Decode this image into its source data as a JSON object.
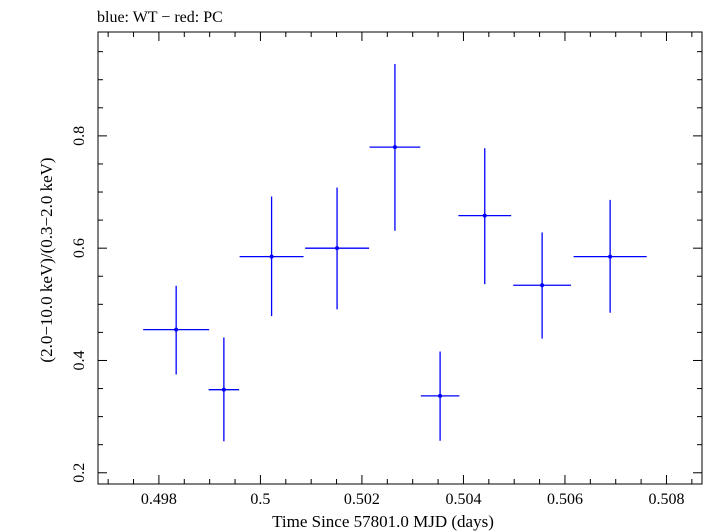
{
  "chart_data": {
    "type": "scatter",
    "title": "blue: WT − red: PC",
    "xlabel": "Time Since 57801.0 MJD (days)",
    "ylabel": "(2.0−10.0 keV)/(0.3−2.0 keV)",
    "xlim": [
      0.4968,
      0.5087
    ],
    "ylim": [
      0.18,
      0.985
    ],
    "x_ticks": [
      0.498,
      0.5,
      0.502,
      0.504,
      0.506,
      0.508
    ],
    "x_tick_labels": [
      "0.498",
      "0.5",
      "0.502",
      "0.504",
      "0.506",
      "0.508"
    ],
    "y_ticks": [
      0.2,
      0.4,
      0.6,
      0.8
    ],
    "y_tick_labels": [
      "0.2",
      "0.4",
      "0.6",
      "0.8"
    ],
    "x_minor_step": 0.0005,
    "y_minor_step": 0.05,
    "grid": false,
    "series": [
      {
        "color": "#0000ff",
        "points": [
          {
            "x": 0.49834,
            "y": 0.455,
            "xerr": 0.00065,
            "ylo": 0.375,
            "yhi": 0.533
          },
          {
            "x": 0.49928,
            "y": 0.348,
            "xerr": 0.0003,
            "ylo": 0.256,
            "yhi": 0.441
          },
          {
            "x": 0.50022,
            "y": 0.585,
            "xerr": 0.00063,
            "ylo": 0.479,
            "yhi": 0.692
          },
          {
            "x": 0.50151,
            "y": 0.6,
            "xerr": 0.00063,
            "ylo": 0.491,
            "yhi": 0.708
          },
          {
            "x": 0.50265,
            "y": 0.78,
            "xerr": 0.0005,
            "ylo": 0.631,
            "yhi": 0.928
          },
          {
            "x": 0.50354,
            "y": 0.337,
            "xerr": 0.00038,
            "ylo": 0.257,
            "yhi": 0.416
          },
          {
            "x": 0.50442,
            "y": 0.658,
            "xerr": 0.00052,
            "ylo": 0.536,
            "yhi": 0.778
          },
          {
            "x": 0.50555,
            "y": 0.534,
            "xerr": 0.00057,
            "ylo": 0.439,
            "yhi": 0.628
          },
          {
            "x": 0.50689,
            "y": 0.585,
            "xerr": 0.00072,
            "ylo": 0.485,
            "yhi": 0.686
          }
        ]
      }
    ]
  }
}
